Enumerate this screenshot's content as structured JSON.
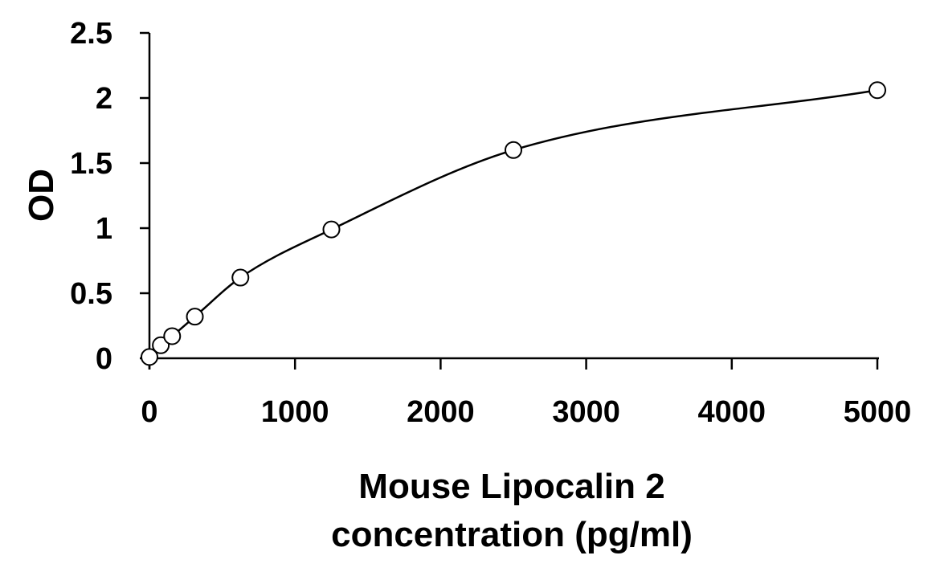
{
  "chart_data": {
    "type": "scatter",
    "title": "",
    "xlabel_lines": [
      "Mouse Lipocalin 2",
      "concentration (pg/ml)"
    ],
    "ylabel": "OD",
    "xlim": [
      0,
      5000
    ],
    "ylim": [
      0,
      2.5
    ],
    "x_ticks": [
      "0",
      "1000",
      "2000",
      "3000",
      "4000",
      "5000"
    ],
    "y_ticks": [
      "0",
      "0.5",
      "1",
      "1.5",
      "2",
      "2.5"
    ],
    "grid": false,
    "legend": "none",
    "series": [
      {
        "points": [
          {
            "x": 0,
            "y": 0.01
          },
          {
            "x": 78,
            "y": 0.1
          },
          {
            "x": 156,
            "y": 0.17
          },
          {
            "x": 312,
            "y": 0.32
          },
          {
            "x": 625,
            "y": 0.62
          },
          {
            "x": 1250,
            "y": 0.99
          },
          {
            "x": 2500,
            "y": 1.6
          },
          {
            "x": 5000,
            "y": 2.06
          }
        ],
        "marker": "open-circle",
        "fit": "smooth-curve"
      }
    ],
    "colors": {
      "line": "#000000",
      "marker_fill": "#ffffff"
    }
  }
}
